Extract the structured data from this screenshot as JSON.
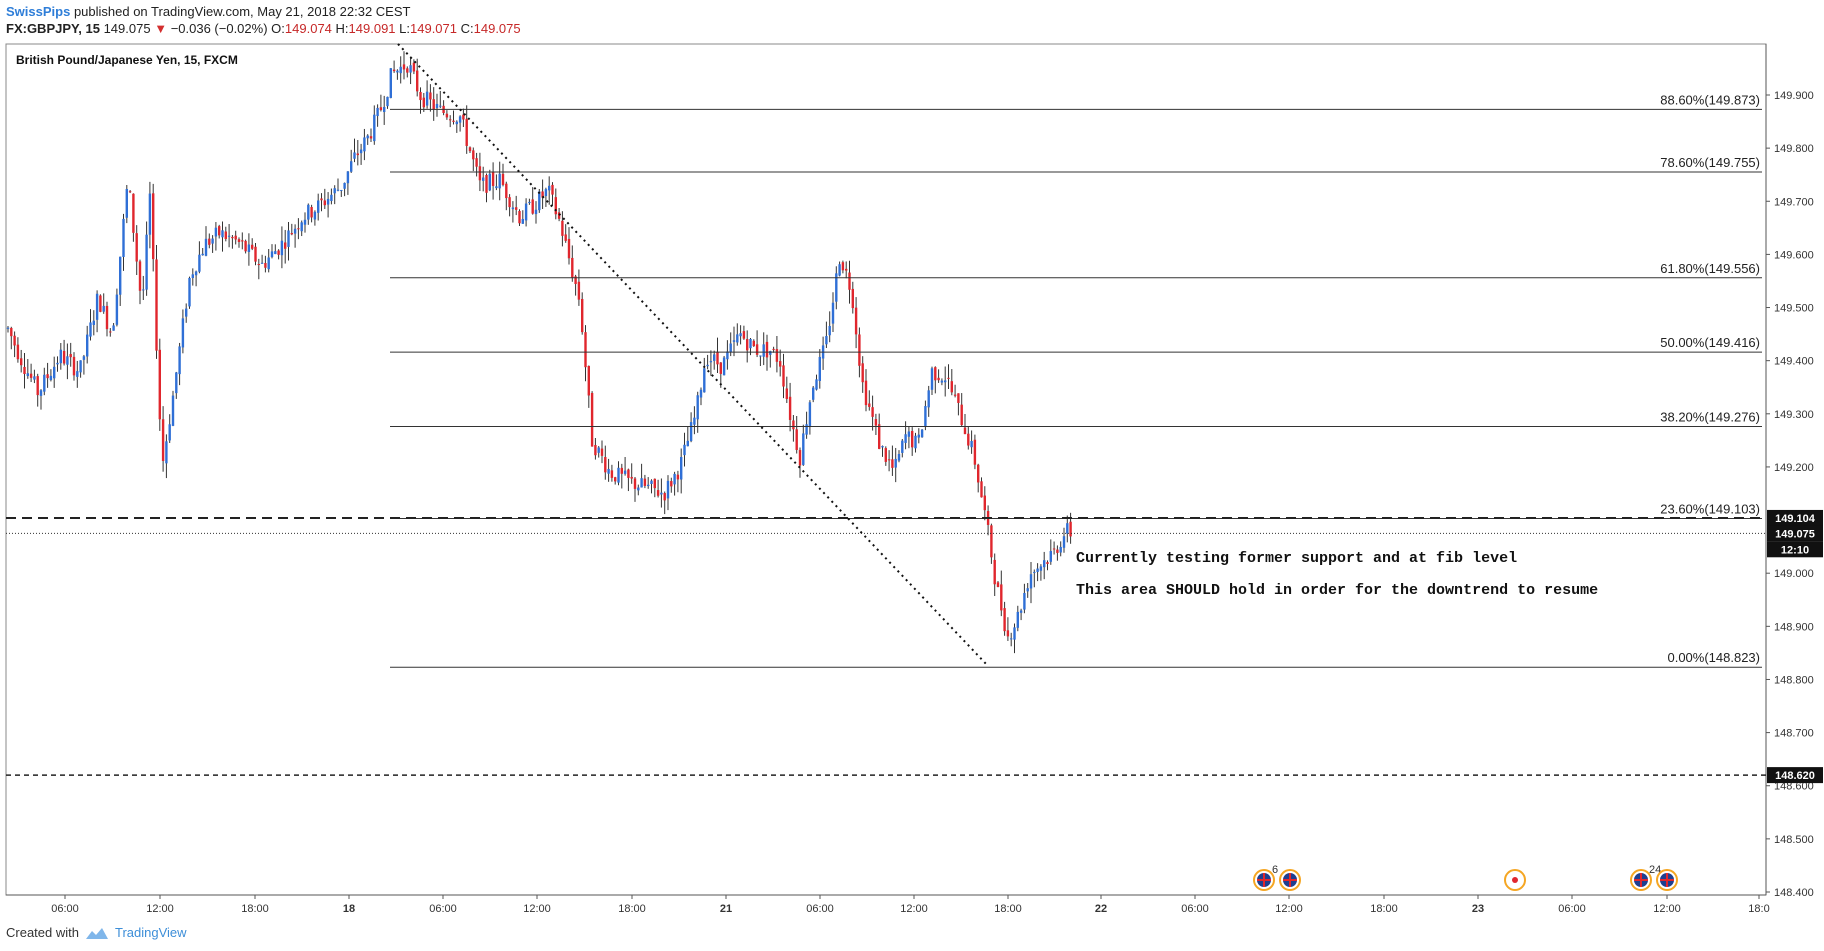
{
  "header": {
    "author": "SwissPips",
    "published": "published on TradingView.com, May 21, 2018 22:32 CEST",
    "symbol": "FX:GBPJPY, 15",
    "last": "149.075",
    "change_arrow": "▼",
    "change": "−0.036 (−0.02%)",
    "o_label": "O:",
    "o": "149.074",
    "h_label": "H:",
    "h": "149.091",
    "l_label": "L:",
    "l": "149.071",
    "c_label": "C:",
    "c": "149.075"
  },
  "footer": {
    "created_with": "Created with",
    "brand": "TradingView"
  },
  "chart_data": {
    "type": "candlestick",
    "legend": "British Pound/Japanese Yen, 15, FXCM",
    "y_ticks": [
      "149.900",
      "149.800",
      "149.700",
      "149.600",
      "149.500",
      "149.400",
      "149.300",
      "149.200",
      "149.000",
      "148.900",
      "148.800",
      "148.700",
      "148.600",
      "148.500",
      "148.400"
    ],
    "x_ticks": [
      "06:00",
      "12:00",
      "18:00",
      "18",
      "06:00",
      "12:00",
      "18:00",
      "21",
      "06:00",
      "12:00",
      "18:00",
      "22",
      "06:00",
      "12:00",
      "18:00",
      "23",
      "06:00",
      "12:00",
      "18:0"
    ],
    "fib_levels": [
      {
        "label": "88.60%(149.873)",
        "price": 149.873
      },
      {
        "label": "78.60%(149.755)",
        "price": 149.755
      },
      {
        "label": "61.80%(149.556)",
        "price": 149.556
      },
      {
        "label": "50.00%(149.416)",
        "price": 149.416
      },
      {
        "label": "38.20%(149.276)",
        "price": 149.276
      },
      {
        "label": "23.60%(149.103)",
        "price": 149.103
      },
      {
        "label": "0.00%(148.823)",
        "price": 148.823
      }
    ],
    "price_tags": [
      {
        "label": "149.104",
        "price": 149.104
      },
      {
        "label": "149.075",
        "price": 149.075
      },
      {
        "label": "12:10",
        "price": 149.045
      },
      {
        "label": "148.620",
        "price": 148.62
      }
    ],
    "annotations": [
      "Currently testing former support and at fib level",
      "This area SHOULD hold in order for the downtrend to resume"
    ],
    "events": [
      {
        "badge": "6"
      },
      {
        "badge": ""
      },
      {
        "badge": "24"
      },
      {
        "badge": ""
      }
    ],
    "ylim": [
      148.4,
      149.985
    ],
    "colors": {
      "up": "#2f6fd6",
      "down": "#e0262d",
      "text": "#222222"
    }
  }
}
